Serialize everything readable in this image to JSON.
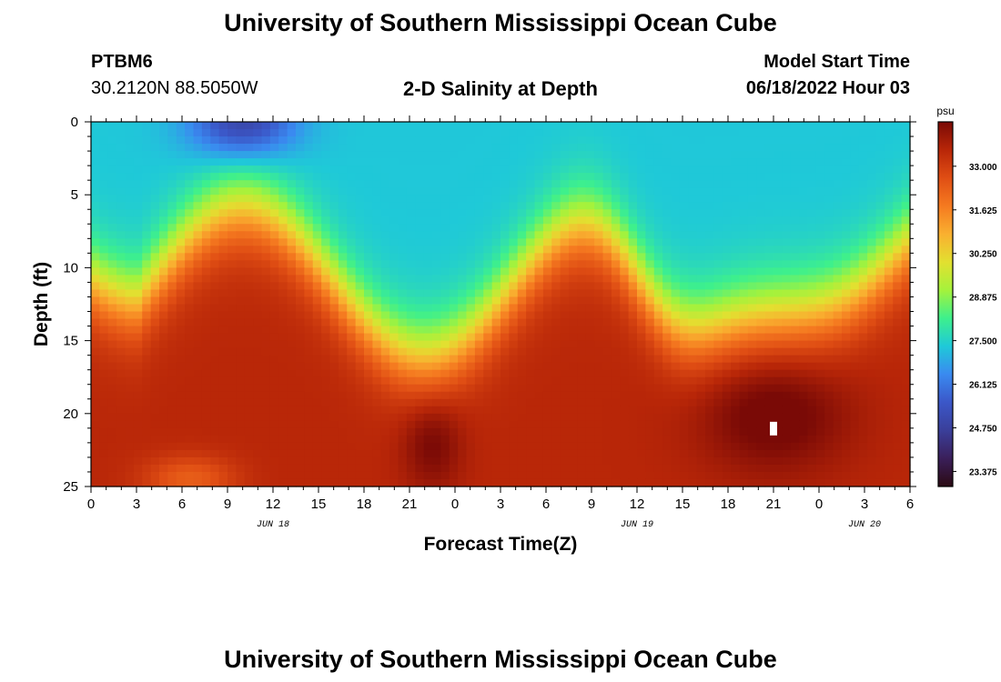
{
  "header": {
    "title": "University of Southern Mississippi Ocean Cube",
    "station": "PTBM6",
    "coords": "30.2120N  88.5050W",
    "subtitle": "2-D Salinity at Depth",
    "model_label": "Model Start Time",
    "model_time": "06/18/2022 Hour 03"
  },
  "footer": {
    "title": "University of Southern Mississippi Ocean Cube"
  },
  "chart_data": {
    "type": "heatmap",
    "title": "2-D Salinity at Depth",
    "xlabel": "Forecast Time(Z)",
    "ylabel": "Depth (ft)",
    "x_hours_range": [
      0,
      54
    ],
    "y_range": [
      0,
      25
    ],
    "x_ticks": [
      "0",
      "3",
      "6",
      "9",
      "12",
      "15",
      "18",
      "21",
      "0",
      "3",
      "6",
      "9",
      "12",
      "15",
      "18",
      "21",
      "0",
      "3",
      "6"
    ],
    "y_ticks": [
      "0",
      "5",
      "10",
      "15",
      "20",
      "25"
    ],
    "dates": [
      {
        "label": "JUN 18",
        "hour": 12
      },
      {
        "label": "JUN 19",
        "hour": 36
      },
      {
        "label": "JUN 20",
        "hour": 51
      }
    ],
    "colorbar": {
      "unit": "psu",
      "min": 22.9,
      "max": 34.4,
      "labels": [
        "33.000",
        "31.625",
        "30.250",
        "28.875",
        "27.500",
        "26.125",
        "24.750",
        "23.375"
      ],
      "colors": [
        "#2b0a12",
        "#3a1f5a",
        "#3a3f9a",
        "#3b57c8",
        "#3a8af0",
        "#1fc9d8",
        "#3ef08c",
        "#a4f23c",
        "#e2e030",
        "#f9b030",
        "#f57a20",
        "#e04e14",
        "#b82608",
        "#7a0a06"
      ]
    },
    "marker": {
      "hour": 45,
      "depth": 21
    }
  }
}
